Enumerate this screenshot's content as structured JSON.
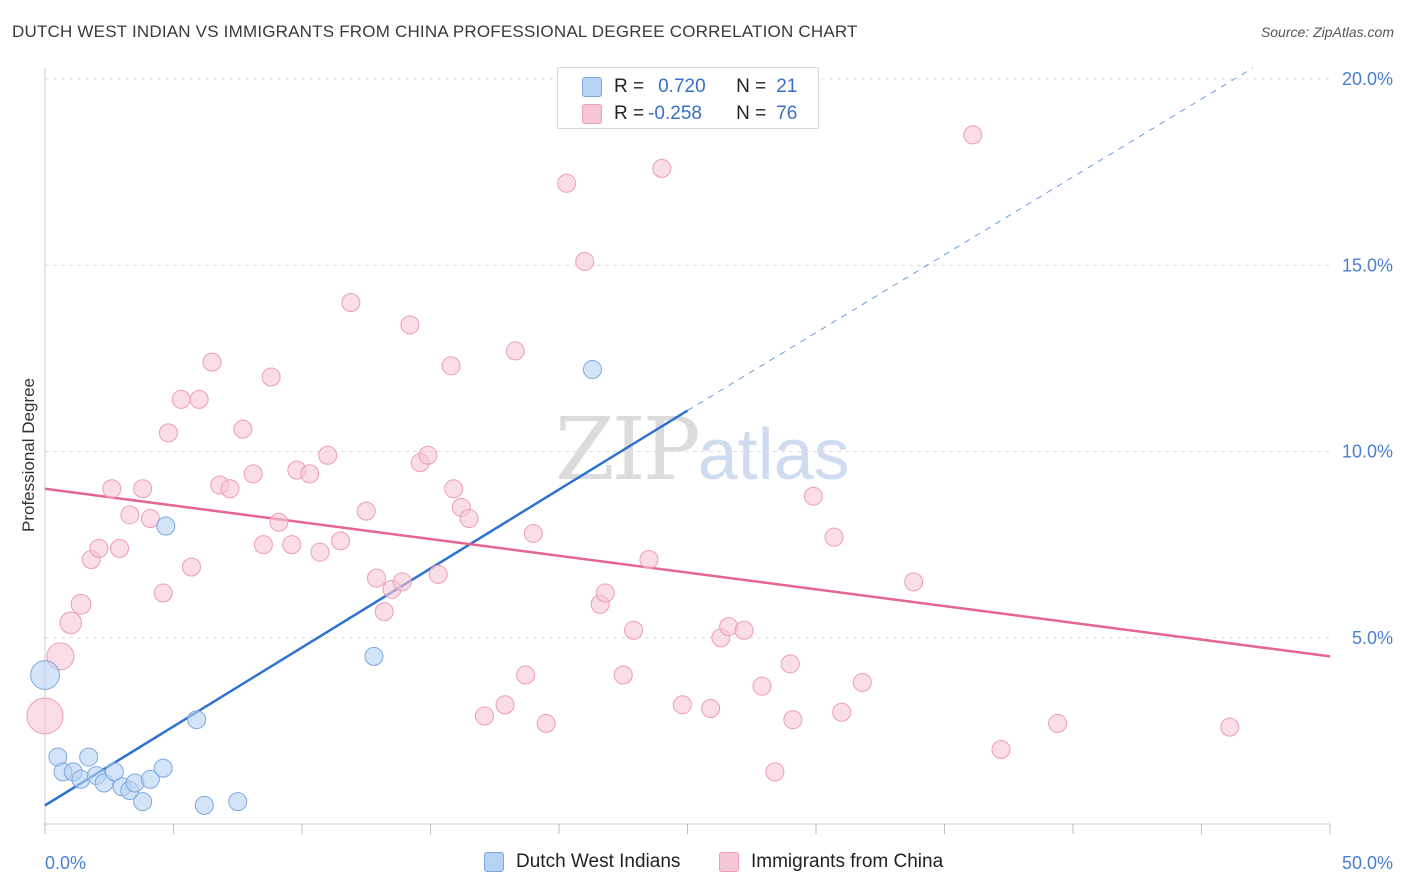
{
  "header": {
    "title": "DUTCH WEST INDIAN VS IMMIGRANTS FROM CHINA PROFESSIONAL DEGREE CORRELATION CHART",
    "source_prefix": "Source: ",
    "source_name": "ZipAtlas.com"
  },
  "watermark": {
    "zip": "ZIP",
    "atlas": "atlas"
  },
  "legend": {
    "rows": [
      {
        "r_label": "R =",
        "r_value": "0.720",
        "n_label": "N =",
        "n_value": "21"
      },
      {
        "r_label": "R =",
        "r_value": "-0.258",
        "n_label": "N =",
        "n_value": "76"
      }
    ]
  },
  "bottom_legend": [
    "Dutch West Indians",
    "Immigrants from China"
  ],
  "colors": {
    "blue_fill": "#b8d2f3",
    "blue_stroke": "#7ea7de",
    "blue_line": "#2f72cf",
    "pink_fill": "#f7c6d5",
    "pink_stroke": "#ec9db7",
    "pink_line": "#e5668f",
    "grid": "#dcdcdc",
    "tick_text": "#4a7fd0"
  },
  "chart_data": {
    "type": "scatter",
    "title": "DUTCH WEST INDIAN VS IMMIGRANTS FROM CHINA PROFESSIONAL DEGREE CORRELATION CHART",
    "xlabel": "",
    "ylabel": "Professional Degree",
    "xlim": [
      0,
      50
    ],
    "ylim": [
      0,
      20
    ],
    "x_tick_labels": [
      {
        "value": 0,
        "label": "0.0%"
      },
      {
        "value": 50,
        "label": "50.0%"
      }
    ],
    "y_tick_labels": [
      {
        "value": 5,
        "label": "5.0%"
      },
      {
        "value": 10,
        "label": "10.0%"
      },
      {
        "value": 15,
        "label": "15.0%"
      },
      {
        "value": 20,
        "label": "20.0%"
      }
    ],
    "grid": "horizontal dashed",
    "legend_position": "top-center",
    "series": [
      {
        "name": "Dutch West Indians",
        "R": 0.72,
        "N": 21,
        "trend": {
          "x0": 0,
          "y0": 0.5,
          "x1": 25,
          "y1": 11.1,
          "dashed_to": {
            "x": 47.0,
            "y": 20.3
          }
        },
        "points": [
          {
            "x": 0.0,
            "y": 4.0,
            "size": 1.6
          },
          {
            "x": 0.5,
            "y": 1.8
          },
          {
            "x": 0.7,
            "y": 1.4
          },
          {
            "x": 1.1,
            "y": 1.4
          },
          {
            "x": 1.4,
            "y": 1.2
          },
          {
            "x": 1.7,
            "y": 1.8
          },
          {
            "x": 2.0,
            "y": 1.3
          },
          {
            "x": 2.3,
            "y": 1.1
          },
          {
            "x": 2.7,
            "y": 1.4
          },
          {
            "x": 3.0,
            "y": 1.0
          },
          {
            "x": 3.3,
            "y": 0.9
          },
          {
            "x": 3.5,
            "y": 1.1
          },
          {
            "x": 3.8,
            "y": 0.6
          },
          {
            "x": 4.1,
            "y": 1.2
          },
          {
            "x": 4.6,
            "y": 1.5
          },
          {
            "x": 4.7,
            "y": 8.0
          },
          {
            "x": 5.9,
            "y": 2.8
          },
          {
            "x": 6.2,
            "y": 0.5
          },
          {
            "x": 7.5,
            "y": 0.6
          },
          {
            "x": 12.8,
            "y": 4.5
          },
          {
            "x": 21.3,
            "y": 12.2
          }
        ]
      },
      {
        "name": "Immigrants from China",
        "R": -0.258,
        "N": 76,
        "trend": {
          "x0": 0,
          "y0": 9.0,
          "x1": 50,
          "y1": 4.5
        },
        "points": [
          {
            "x": 0.0,
            "y": 2.9,
            "size": 2.0
          },
          {
            "x": 0.6,
            "y": 4.5,
            "size": 1.5
          },
          {
            "x": 1.0,
            "y": 5.4,
            "size": 1.2
          },
          {
            "x": 1.4,
            "y": 5.9,
            "size": 1.1
          },
          {
            "x": 1.8,
            "y": 7.1
          },
          {
            "x": 2.1,
            "y": 7.4
          },
          {
            "x": 2.6,
            "y": 9.0
          },
          {
            "x": 2.9,
            "y": 7.4
          },
          {
            "x": 3.3,
            "y": 8.3
          },
          {
            "x": 3.8,
            "y": 9.0
          },
          {
            "x": 4.1,
            "y": 8.2
          },
          {
            "x": 4.6,
            "y": 6.2
          },
          {
            "x": 4.8,
            "y": 10.5
          },
          {
            "x": 5.3,
            "y": 11.4
          },
          {
            "x": 5.7,
            "y": 6.9
          },
          {
            "x": 6.0,
            "y": 11.4
          },
          {
            "x": 6.5,
            "y": 12.4
          },
          {
            "x": 6.8,
            "y": 9.1
          },
          {
            "x": 7.2,
            "y": 9.0
          },
          {
            "x": 7.7,
            "y": 10.6
          },
          {
            "x": 8.1,
            "y": 9.4
          },
          {
            "x": 8.5,
            "y": 7.5
          },
          {
            "x": 8.8,
            "y": 12.0
          },
          {
            "x": 9.1,
            "y": 8.1
          },
          {
            "x": 9.6,
            "y": 7.5
          },
          {
            "x": 9.8,
            "y": 9.5
          },
          {
            "x": 10.3,
            "y": 9.4
          },
          {
            "x": 10.7,
            "y": 7.3
          },
          {
            "x": 11.0,
            "y": 9.9
          },
          {
            "x": 11.5,
            "y": 7.6
          },
          {
            "x": 11.9,
            "y": 14.0
          },
          {
            "x": 12.5,
            "y": 8.4
          },
          {
            "x": 12.9,
            "y": 6.6
          },
          {
            "x": 13.2,
            "y": 5.7
          },
          {
            "x": 13.5,
            "y": 6.3
          },
          {
            "x": 13.9,
            "y": 6.5
          },
          {
            "x": 14.2,
            "y": 13.4
          },
          {
            "x": 14.6,
            "y": 9.7
          },
          {
            "x": 14.9,
            "y": 9.9
          },
          {
            "x": 15.3,
            "y": 6.7
          },
          {
            "x": 15.8,
            "y": 12.3
          },
          {
            "x": 16.2,
            "y": 8.5
          },
          {
            "x": 16.5,
            "y": 8.2
          },
          {
            "x": 17.1,
            "y": 2.9
          },
          {
            "x": 17.9,
            "y": 3.2
          },
          {
            "x": 18.3,
            "y": 12.7
          },
          {
            "x": 18.7,
            "y": 4.0
          },
          {
            "x": 19.0,
            "y": 7.8
          },
          {
            "x": 19.5,
            "y": 2.7
          },
          {
            "x": 20.3,
            "y": 17.2
          },
          {
            "x": 21.0,
            "y": 15.1
          },
          {
            "x": 21.6,
            "y": 5.9
          },
          {
            "x": 21.8,
            "y": 6.2
          },
          {
            "x": 22.5,
            "y": 4.0
          },
          {
            "x": 22.9,
            "y": 5.2
          },
          {
            "x": 23.5,
            "y": 7.1
          },
          {
            "x": 24.0,
            "y": 17.6
          },
          {
            "x": 24.8,
            "y": 3.2
          },
          {
            "x": 25.9,
            "y": 3.1
          },
          {
            "x": 26.3,
            "y": 5.0
          },
          {
            "x": 26.6,
            "y": 5.3
          },
          {
            "x": 27.2,
            "y": 5.2
          },
          {
            "x": 27.9,
            "y": 3.7
          },
          {
            "x": 28.4,
            "y": 1.4
          },
          {
            "x": 29.0,
            "y": 4.3
          },
          {
            "x": 29.1,
            "y": 2.8
          },
          {
            "x": 29.9,
            "y": 8.8
          },
          {
            "x": 30.7,
            "y": 7.7
          },
          {
            "x": 31.0,
            "y": 3.0
          },
          {
            "x": 31.8,
            "y": 3.8
          },
          {
            "x": 33.8,
            "y": 6.5
          },
          {
            "x": 36.1,
            "y": 18.5
          },
          {
            "x": 37.2,
            "y": 2.0
          },
          {
            "x": 39.4,
            "y": 2.7
          },
          {
            "x": 46.1,
            "y": 2.6
          },
          {
            "x": 15.9,
            "y": 9.0
          }
        ]
      }
    ]
  }
}
